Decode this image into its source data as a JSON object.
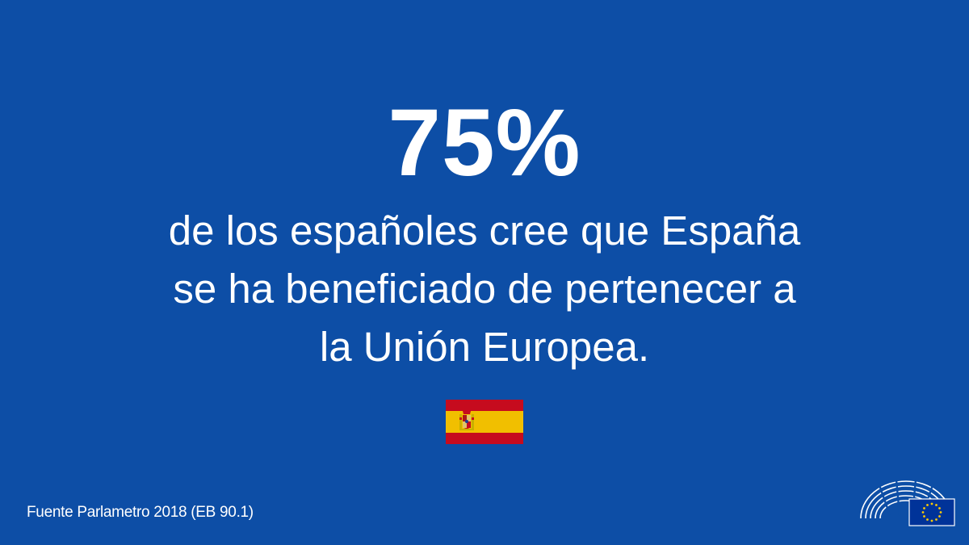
{
  "headline": {
    "value": "75%",
    "lines": [
      "de los españoles cree que España",
      "se ha beneficiado de pertenecer a",
      "la Unión Europea."
    ]
  },
  "flag": {
    "icon": "spain-flag-icon",
    "colors": [
      "#c60b1e",
      "#f1bf00",
      "#c60b1e"
    ]
  },
  "source": "Fuente Parlametro 2018 (EB 90.1)",
  "logo": {
    "icon": "european-parliament-logo-icon",
    "eu_flag_color": "#003399",
    "star_color": "#ffcc00"
  },
  "colors": {
    "background": "#0d4ea6",
    "text": "#ffffff"
  }
}
